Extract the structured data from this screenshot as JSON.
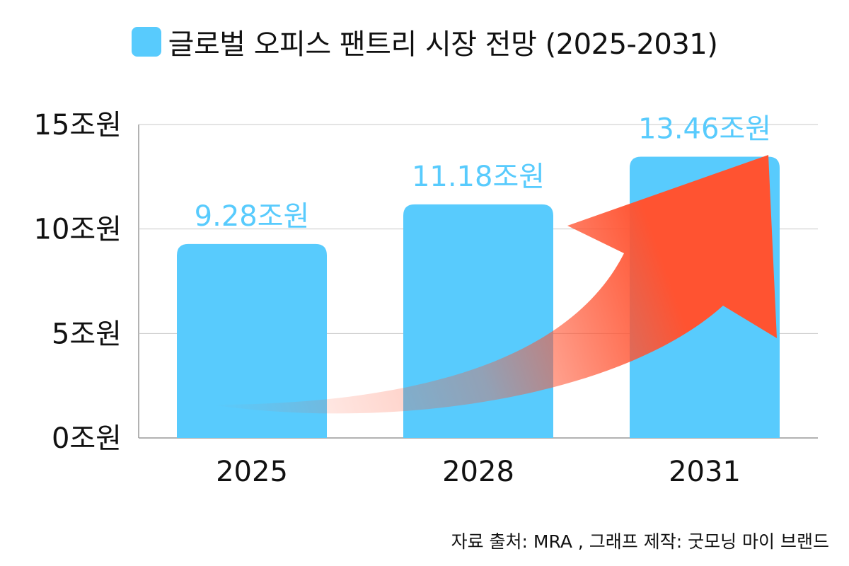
{
  "chart_data": {
    "type": "bar",
    "categories": [
      "2025",
      "2028",
      "2031"
    ],
    "series": [
      {
        "name": "글로벌 오피스 팬트리 시장 전망 (2025-2031)",
        "values": [
          9.28,
          11.18,
          13.46
        ],
        "data_labels": [
          "9.28조원",
          "11.18조원",
          "13.46조원"
        ]
      }
    ],
    "ylim": [
      0,
      15
    ],
    "yticks": [
      0,
      5,
      10,
      15
    ],
    "ytick_labels": [
      "0조원",
      "5조원",
      "10조원",
      "15조원"
    ],
    "grid": true,
    "legend_position": "top-center",
    "annotation": "upward growth arrow",
    "colors": {
      "bar": "#58cbfd",
      "label": "#58cbfd",
      "arrow": "#ff5331",
      "grid": "#c8c8c8",
      "axis": "#999999"
    }
  },
  "footer": {
    "source_note": "자료 출처: MRA , 그래프 제작: 굿모닝 마이 브랜드"
  }
}
